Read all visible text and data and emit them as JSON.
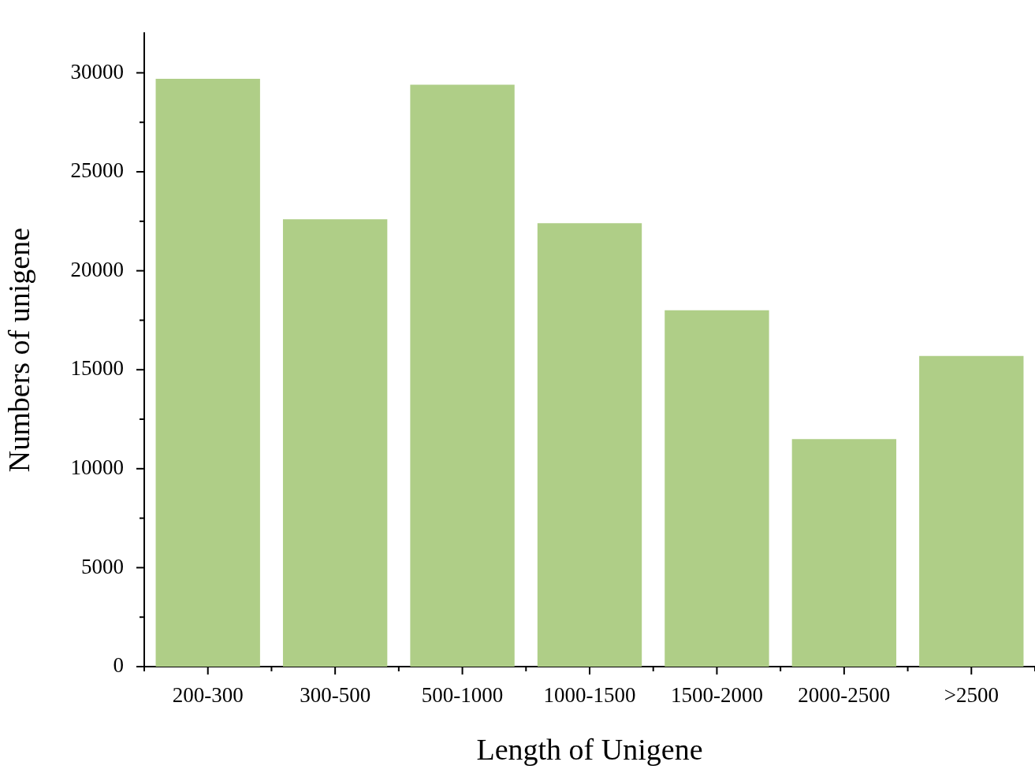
{
  "chart_data": {
    "type": "bar",
    "xlabel": "Length of Unigene",
    "ylabel": "Numbers of unigene",
    "categories": [
      "200-300",
      "300-500",
      "500-1000",
      "1000-1500",
      "1500-2000",
      "2000-2500",
      ">2500"
    ],
    "values": [
      29700,
      22600,
      29400,
      22400,
      18000,
      11500,
      15700
    ],
    "color": "#afce87",
    "ylim": [
      0,
      32000
    ],
    "yticks": [
      0,
      {
        "value": 2500,
        "label": null
      },
      5000,
      {
        "value": 7500,
        "label": null
      },
      10000,
      {
        "value": 12500,
        "label": null
      },
      15000,
      {
        "value": 17500,
        "label": null
      },
      20000,
      {
        "value": 22500,
        "label": null
      },
      25000,
      {
        "value": 27500,
        "label": null
      },
      30000
    ],
    "grid": false,
    "legend": false
  }
}
